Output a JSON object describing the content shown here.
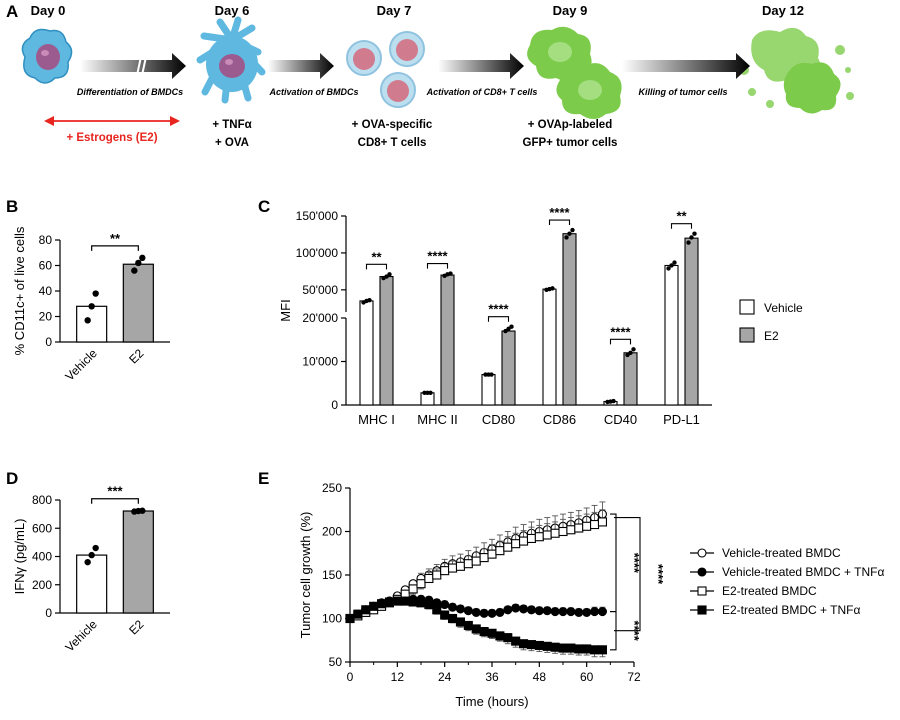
{
  "panel_labels": [
    "A",
    "B",
    "C",
    "D",
    "E"
  ],
  "timeline": {
    "days": [
      "Day 0",
      "Day 6",
      "Day 7",
      "Day 9",
      "Day 12"
    ],
    "steps": [
      "Differentiation of BMDCs",
      "Activation of BMDCs",
      "Activation of CD8+ T cells",
      "Killing of tumor cells"
    ],
    "estrogen_note": "+ Estrogens (E2)",
    "day6_notes": [
      "+ TNFα",
      "+ OVA"
    ],
    "day7_notes": [
      "+ OVA-specific",
      "CD8+ T cells"
    ],
    "day9_notes": [
      "+ OVAp-labeled",
      "GFP+ tumor cells"
    ],
    "colors": {
      "dc": "#5fb8e0",
      "tumor": "#7ccb4a",
      "red": "#e8251f"
    }
  },
  "chart_data": [
    {
      "id": "B",
      "type": "bar",
      "categories": [
        "Vehicle",
        "E2"
      ],
      "values": [
        28,
        61
      ],
      "points": [
        [
          17,
          28,
          38
        ],
        [
          56,
          62,
          66
        ]
      ],
      "ylabel": "% CD11c+ of live cells",
      "ylim": [
        0,
        80
      ],
      "yticks": [
        "0",
        "20",
        "40",
        "60",
        "80"
      ],
      "significance": "**",
      "colors": [
        "#ffffff",
        "#a6a6a6"
      ]
    },
    {
      "id": "C",
      "type": "bar",
      "categories": [
        "MHC I",
        "MHC II",
        "CD80",
        "CD86",
        "CD40",
        "PD-L1"
      ],
      "ylabel": "MFI",
      "broken_axis": {
        "lower": [
          0,
          20000
        ],
        "upper": [
          20000,
          150000
        ]
      },
      "yticks": [
        "0",
        "10'000",
        "20'000",
        "50'000",
        "100'000",
        "150'000"
      ],
      "series": [
        {
          "name": "Vehicle",
          "values": [
            35000,
            2800,
            7000,
            51000,
            800,
            83000
          ],
          "points": [
            [
              33000,
              35000,
              36000
            ],
            [
              2800,
              2800,
              2800
            ],
            [
              7000,
              7000,
              7000
            ],
            [
              50000,
              51000,
              52000
            ],
            [
              700,
              800,
              900
            ],
            [
              79000,
              83000,
              87000
            ]
          ]
        },
        {
          "name": "E2",
          "values": [
            68000,
            70000,
            17000,
            126000,
            12000,
            120000
          ],
          "points": [
            [
              66000,
              68000,
              71000
            ],
            [
              69000,
              71000,
              72000
            ],
            [
              17000,
              17500,
              18000
            ],
            [
              121000,
              126000,
              131000
            ],
            [
              11500,
              12000,
              12800
            ],
            [
              114000,
              121000,
              126000
            ]
          ]
        }
      ],
      "significance": [
        "**",
        "****",
        "****",
        "****",
        "****",
        "**"
      ],
      "colors": [
        "#ffffff",
        "#a6a6a6"
      ]
    },
    {
      "id": "D",
      "type": "bar",
      "categories": [
        "Vehicle",
        "E2"
      ],
      "values": [
        410,
        722
      ],
      "points": [
        [
          360,
          410,
          460
        ],
        [
          718,
          722,
          724
        ]
      ],
      "ylabel": "IFNγ (pg/mL)",
      "ylim": [
        0,
        800
      ],
      "yticks": [
        "0",
        "200",
        "400",
        "600",
        "800"
      ],
      "significance": "***",
      "colors": [
        "#ffffff",
        "#a6a6a6"
      ]
    },
    {
      "id": "E",
      "type": "line",
      "xlabel": "Time (hours)",
      "ylabel": "Tumor cell growth (%)",
      "xlim": [
        0,
        72
      ],
      "ylim": [
        50,
        250
      ],
      "xticks": [
        "0",
        "12",
        "24",
        "36",
        "48",
        "60",
        "72"
      ],
      "yticks": [
        "50",
        "100",
        "150",
        "200",
        "250"
      ],
      "x": [
        0,
        2,
        4,
        6,
        8,
        10,
        12,
        14,
        16,
        18,
        20,
        22,
        24,
        26,
        28,
        30,
        32,
        34,
        36,
        38,
        40,
        42,
        44,
        46,
        48,
        50,
        52,
        54,
        56,
        58,
        60,
        62,
        64
      ],
      "series": [
        {
          "name": "Vehicle-treated BMDC",
          "marker": "open-circle",
          "values": [
            100,
            104,
            108,
            111,
            116,
            120,
            126,
            133,
            140,
            146,
            150,
            155,
            160,
            163,
            165,
            168,
            172,
            176,
            180,
            184,
            188,
            192,
            195,
            198,
            200,
            202,
            204,
            206,
            208,
            210,
            213,
            216,
            220
          ],
          "err": [
            0,
            2,
            3,
            3,
            4,
            4,
            5,
            5,
            6,
            6,
            7,
            7,
            8,
            9,
            9,
            10,
            10,
            11,
            11,
            12,
            12,
            13,
            13,
            13,
            14,
            14,
            14,
            14,
            14,
            14,
            14,
            14,
            14
          ]
        },
        {
          "name": "Vehicle-treated BMDC + TNFα",
          "marker": "filled-circle",
          "values": [
            100,
            105,
            110,
            114,
            118,
            120,
            121,
            122,
            122,
            122,
            121,
            118,
            116,
            113,
            111,
            109,
            107,
            106,
            106,
            107,
            110,
            112,
            111,
            110,
            109,
            109,
            108,
            108,
            108,
            107,
            107,
            108,
            108
          ],
          "err": [
            0,
            2,
            3,
            3,
            3,
            3,
            4,
            4,
            4,
            4,
            4,
            4,
            4,
            4,
            4,
            4,
            4,
            4,
            4,
            4,
            4,
            4,
            4,
            4,
            4,
            4,
            4,
            4,
            4,
            4,
            4,
            5,
            5
          ]
        },
        {
          "name": "E2-treated BMDC",
          "marker": "open-square",
          "values": [
            100,
            103,
            107,
            110,
            114,
            118,
            122,
            128,
            134,
            140,
            146,
            150,
            155,
            158,
            160,
            163,
            166,
            170,
            174,
            178,
            182,
            186,
            189,
            192,
            194,
            196,
            198,
            200,
            202,
            204,
            206,
            208,
            211
          ],
          "err": [
            0,
            2,
            3,
            3,
            4,
            4,
            5,
            5,
            6,
            6,
            7,
            7,
            8,
            8,
            9,
            9,
            10,
            10,
            11,
            11,
            12,
            12,
            12,
            13,
            13,
            13,
            13,
            14,
            14,
            14,
            14,
            14,
            14
          ]
        },
        {
          "name": "E2-treated BMDC + TNFα",
          "marker": "filled-square",
          "values": [
            100,
            105,
            110,
            114,
            117,
            119,
            120,
            120,
            119,
            118,
            116,
            110,
            104,
            100,
            96,
            92,
            88,
            85,
            83,
            80,
            78,
            74,
            71,
            70,
            69,
            68,
            67,
            66,
            66,
            65,
            65,
            64,
            64
          ],
          "err": [
            0,
            2,
            3,
            3,
            3,
            4,
            4,
            4,
            4,
            4,
            5,
            5,
            5,
            5,
            6,
            6,
            6,
            6,
            6,
            6,
            7,
            7,
            7,
            7,
            7,
            7,
            7,
            7,
            7,
            7,
            7,
            8,
            8
          ]
        }
      ],
      "significance": [
        "****",
        "****",
        "****"
      ]
    }
  ]
}
